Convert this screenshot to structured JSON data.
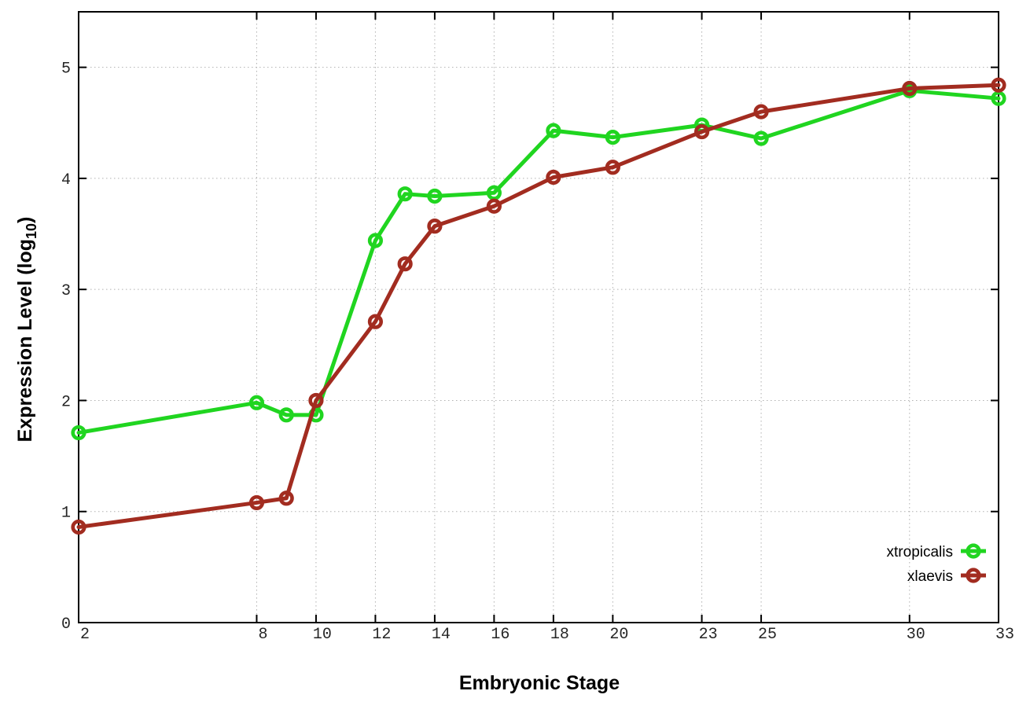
{
  "chart_data": {
    "type": "line",
    "title": "",
    "xlabel": "Embryonic Stage",
    "ylabel": "Expression Level (log10)",
    "ylabel_parts": {
      "main": "Expression Level (log",
      "sub": "10",
      "close": ")"
    },
    "x": [
      2,
      8,
      9,
      10,
      12,
      13,
      14,
      16,
      18,
      20,
      23,
      25,
      30,
      33
    ],
    "x_tick_labels": [
      "2",
      "8",
      "10",
      "12",
      "14",
      "16",
      "18",
      "20",
      "23",
      "25",
      "30",
      "33"
    ],
    "x_ticks": [
      2,
      8,
      10,
      12,
      14,
      16,
      18,
      20,
      23,
      25,
      30,
      33
    ],
    "y_ticks": [
      0,
      1,
      2,
      3,
      4,
      5
    ],
    "y_tick_labels": [
      "0",
      "1",
      "2",
      "3",
      "4",
      "5"
    ],
    "xlim": [
      2,
      33
    ],
    "ylim": [
      0,
      5.5
    ],
    "grid": true,
    "legend_position": "bottom-right",
    "series": [
      {
        "name": "xtropicalis",
        "color": "#20d520",
        "marker": "open-circle",
        "values": [
          1.71,
          1.98,
          1.87,
          1.87,
          3.44,
          3.86,
          3.84,
          3.87,
          4.43,
          4.37,
          4.48,
          4.36,
          4.79,
          4.72
        ]
      },
      {
        "name": "xlaevis",
        "color": "#a22c20",
        "marker": "open-circle",
        "values": [
          0.86,
          1.08,
          1.12,
          2.0,
          2.71,
          3.23,
          3.57,
          3.75,
          4.01,
          4.1,
          4.42,
          4.6,
          4.81,
          4.84
        ]
      }
    ],
    "style": {
      "background": "#ffffff",
      "border_color": "#000000",
      "grid_color": "#b0b0b0",
      "tick_label_color": "#262626"
    }
  }
}
